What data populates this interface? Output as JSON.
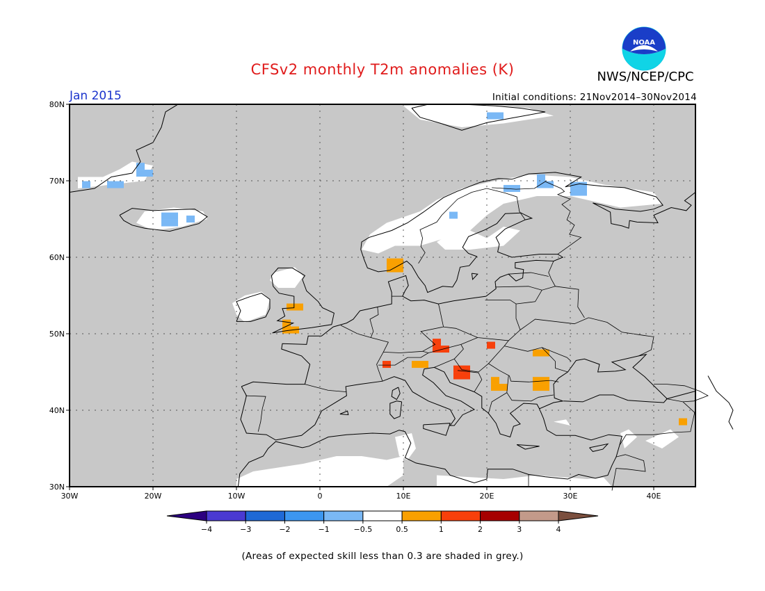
{
  "header": {
    "title": "CFSv2 monthly T2m anomalies (K)",
    "agency": "NWS/NCEP/CPC",
    "logo_text": "NOAA",
    "month": "Jan 2015",
    "initial_conditions": "Initial conditions: 21Nov2014–30Nov2014"
  },
  "map": {
    "region": "Europe",
    "lon_range": [
      -30,
      45
    ],
    "lat_range": [
      30,
      80
    ],
    "lat_ticks": [
      "30N",
      "40N",
      "50N",
      "60N",
      "70N",
      "80N"
    ],
    "lon_ticks": [
      "30W",
      "20W",
      "10W",
      "0",
      "10E",
      "20E",
      "30E",
      "40E"
    ],
    "background_color": "#c8c8c8",
    "land_outline_color": "#000000",
    "anomaly_patches": [
      {
        "lon": -28.5,
        "lat": 69.5,
        "value": -0.7
      },
      {
        "lon": -25.5,
        "lat": 69.5,
        "value": -0.7
      },
      {
        "lon": -22,
        "lat": 71,
        "value": -0.7
      },
      {
        "lon": -19,
        "lat": 64.5,
        "value": -0.8
      },
      {
        "lon": -16,
        "lat": 65,
        "value": -0.8
      },
      {
        "lon": -4,
        "lat": 53.5,
        "value": 0.7
      },
      {
        "lon": -4.5,
        "lat": 50.5,
        "value": 0.7
      },
      {
        "lon": 8,
        "lat": 58.5,
        "value": 0.7
      },
      {
        "lon": 7.5,
        "lat": 46,
        "value": 1.3
      },
      {
        "lon": 11,
        "lat": 46,
        "value": 0.7
      },
      {
        "lon": 13.5,
        "lat": 48,
        "value": 1.3
      },
      {
        "lon": 16,
        "lat": 44.5,
        "value": 1.3
      },
      {
        "lon": 20,
        "lat": 48.5,
        "value": 1.3
      },
      {
        "lon": 25.5,
        "lat": 47.5,
        "value": 0.7
      },
      {
        "lon": 20.5,
        "lat": 43,
        "value": 0.7
      },
      {
        "lon": 25.5,
        "lat": 43,
        "value": 0.7
      },
      {
        "lon": 43,
        "lat": 38.5,
        "value": 0.7
      },
      {
        "lon": 22,
        "lat": 69,
        "value": -0.8
      },
      {
        "lon": 26,
        "lat": 69.5,
        "value": -0.8
      },
      {
        "lon": 30,
        "lat": 68.5,
        "value": -0.7
      },
      {
        "lon": 15.5,
        "lat": 65.5,
        "value": -0.7
      },
      {
        "lon": 20,
        "lat": 78.5,
        "value": -0.7
      }
    ]
  },
  "colorbar": {
    "labels": [
      "−4",
      "−3",
      "−2",
      "−1",
      "−0.5",
      "0.5",
      "1",
      "2",
      "3",
      "4"
    ],
    "colors": [
      "#2c0080",
      "#4a3ad2",
      "#1f69d6",
      "#3c96f0",
      "#7ab8f5",
      "#ffffff",
      "#f9a000",
      "#f8400b",
      "#a60000",
      "#c39a8a",
      "#7b4f3e"
    ]
  },
  "footnote": "(Areas of expected skill less than 0.3 are shaded in grey.)"
}
